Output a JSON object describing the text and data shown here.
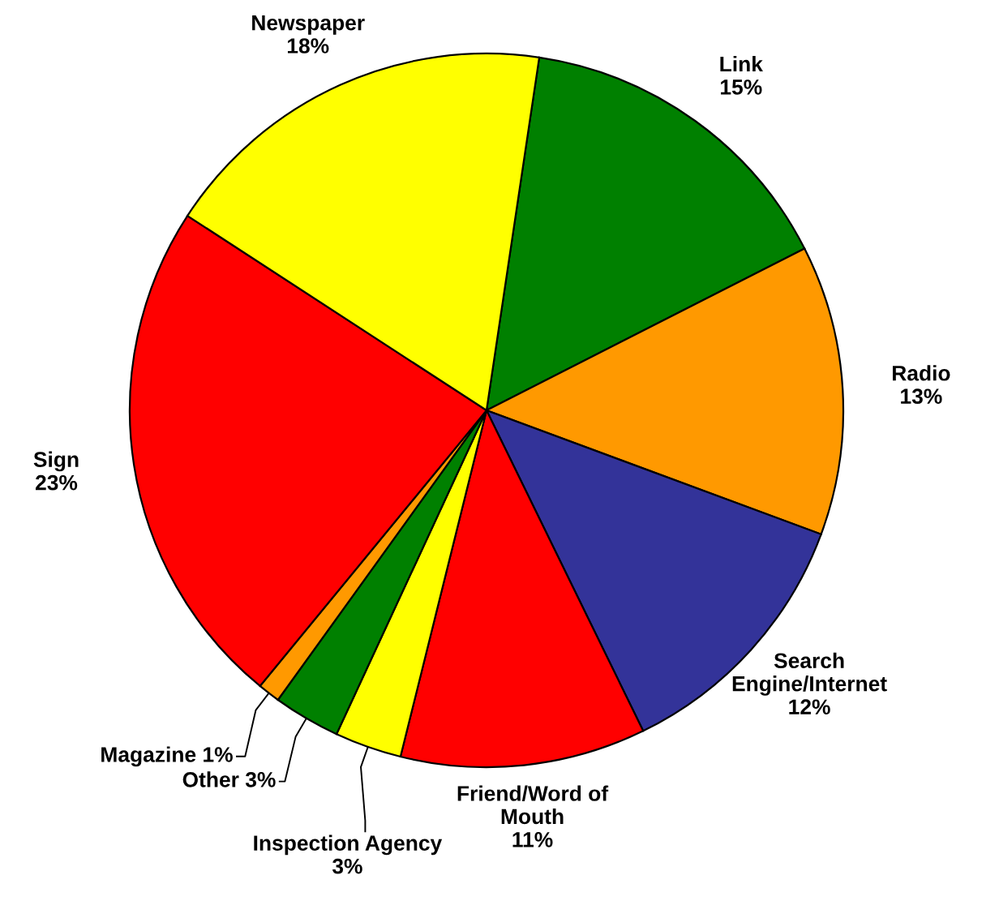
{
  "chart_data": {
    "type": "pie",
    "categories": [
      "Link",
      "Radio",
      "Search\nEngine/Internet",
      "Friend/Word of\nMouth",
      "Inspection Agency",
      "Other",
      "Magazine",
      "Sign",
      "Newspaper"
    ],
    "values": [
      15,
      13,
      12,
      11,
      3,
      3,
      1,
      23,
      18
    ],
    "value_labels": [
      "15%",
      "13%",
      "12%",
      "11%",
      "3%",
      "3%",
      "1%",
      "23%",
      "18%"
    ],
    "colors": [
      "#008000",
      "#ff9900",
      "#333399",
      "#ff0000",
      "#ffff00",
      "#008000",
      "#ff9900",
      "#ff0000",
      "#ffff00"
    ]
  }
}
